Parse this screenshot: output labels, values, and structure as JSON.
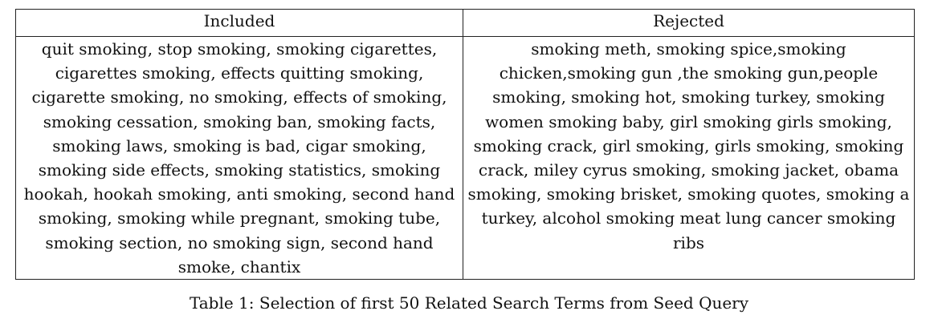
{
  "table": {
    "headers": [
      "Included",
      "Rejected"
    ],
    "included": "quit smoking, stop smoking, smoking cigarettes, cigarettes smoking, effects quitting smoking, cigarette smoking, no smoking, effects of smoking, smoking cessation, smoking ban, smoking facts, smoking laws, smoking is bad, cigar smoking, smoking side effects, smoking statistics, smoking hookah, hookah smoking, anti smoking, second hand smoking, smoking while pregnant, smoking tube, smoking section, no smoking sign, second hand smoke, chantix",
    "rejected": "smoking meth, smoking spice,smoking chicken,smoking gun ,the smoking gun,people smoking, smoking hot, smoking turkey, smoking women smoking baby, girl smoking girls smoking, smoking crack, girl smoking, girls smoking, smoking crack, miley cyrus smoking, smoking jacket, obama smoking, smoking brisket, smoking quotes, smoking a turkey, alcohol smoking meat lung cancer smoking ribs"
  },
  "caption": "Table 1: Selection of first 50 Related Search Terms from Seed Query"
}
